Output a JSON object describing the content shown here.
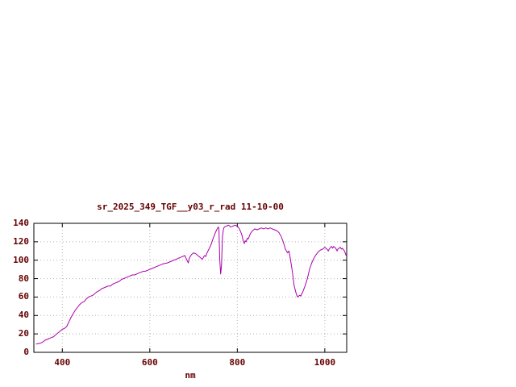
{
  "chart_data": {
    "type": "line",
    "title": "sr_2025_349_TGF__y03_r_rad 11-10-00",
    "xlabel": "nm",
    "ylabel": "",
    "xlim": [
      335,
      1050
    ],
    "ylim": [
      0,
      140
    ],
    "xticks": [
      400,
      600,
      800,
      1000
    ],
    "yticks": [
      0,
      20,
      40,
      60,
      80,
      100,
      120,
      140
    ],
    "grid": true,
    "legend_position": "none",
    "line_color": "#aa00aa",
    "text_color": "#660000",
    "border_color": "#000000",
    "grid_color": "#b4b4b4",
    "series": [
      {
        "name": "sr_2025_349_TGF__y03_r_rad",
        "points": [
          [
            340,
            9
          ],
          [
            350,
            10
          ],
          [
            355,
            11
          ],
          [
            360,
            13
          ],
          [
            365,
            14
          ],
          [
            370,
            15
          ],
          [
            375,
            16
          ],
          [
            380,
            17
          ],
          [
            385,
            19
          ],
          [
            390,
            21
          ],
          [
            395,
            23
          ],
          [
            400,
            25
          ],
          [
            405,
            26
          ],
          [
            410,
            28
          ],
          [
            415,
            33
          ],
          [
            420,
            38
          ],
          [
            425,
            42
          ],
          [
            430,
            46
          ],
          [
            435,
            49
          ],
          [
            440,
            52
          ],
          [
            445,
            54
          ],
          [
            450,
            55
          ],
          [
            455,
            58
          ],
          [
            460,
            60
          ],
          [
            465,
            61
          ],
          [
            470,
            62
          ],
          [
            475,
            64
          ],
          [
            480,
            66
          ],
          [
            485,
            67
          ],
          [
            490,
            69
          ],
          [
            495,
            70
          ],
          [
            500,
            71
          ],
          [
            505,
            72
          ],
          [
            510,
            72
          ],
          [
            515,
            74
          ],
          [
            520,
            75
          ],
          [
            525,
            76
          ],
          [
            530,
            77
          ],
          [
            535,
            79
          ],
          [
            540,
            80
          ],
          [
            545,
            81
          ],
          [
            550,
            82
          ],
          [
            555,
            83
          ],
          [
            560,
            84
          ],
          [
            565,
            84
          ],
          [
            570,
            85
          ],
          [
            575,
            86
          ],
          [
            580,
            87
          ],
          [
            585,
            88
          ],
          [
            590,
            88
          ],
          [
            595,
            89
          ],
          [
            600,
            90
          ],
          [
            610,
            92
          ],
          [
            620,
            94
          ],
          [
            630,
            96
          ],
          [
            640,
            97
          ],
          [
            650,
            99
          ],
          [
            655,
            100
          ],
          [
            660,
            101
          ],
          [
            665,
            102
          ],
          [
            670,
            103
          ],
          [
            675,
            104
          ],
          [
            680,
            105
          ],
          [
            685,
            100
          ],
          [
            688,
            97
          ],
          [
            690,
            102
          ],
          [
            695,
            106
          ],
          [
            700,
            108
          ],
          [
            705,
            107
          ],
          [
            710,
            105
          ],
          [
            715,
            103
          ],
          [
            720,
            101
          ],
          [
            725,
            105
          ],
          [
            728,
            104
          ],
          [
            730,
            107
          ],
          [
            735,
            112
          ],
          [
            740,
            117
          ],
          [
            745,
            124
          ],
          [
            750,
            130
          ],
          [
            753,
            133
          ],
          [
            756,
            136
          ],
          [
            758,
            135
          ],
          [
            760,
            100
          ],
          [
            762,
            85
          ],
          [
            764,
            95
          ],
          [
            766,
            125
          ],
          [
            768,
            133
          ],
          [
            770,
            136
          ],
          [
            775,
            137
          ],
          [
            780,
            138
          ],
          [
            785,
            136
          ],
          [
            790,
            137
          ],
          [
            795,
            138
          ],
          [
            800,
            137
          ],
          [
            805,
            134
          ],
          [
            810,
            128
          ],
          [
            813,
            122
          ],
          [
            816,
            118
          ],
          [
            818,
            121
          ],
          [
            820,
            120
          ],
          [
            823,
            124
          ],
          [
            825,
            123
          ],
          [
            830,
            129
          ],
          [
            835,
            132
          ],
          [
            840,
            134
          ],
          [
            845,
            133
          ],
          [
            850,
            134
          ],
          [
            855,
            135
          ],
          [
            860,
            134
          ],
          [
            865,
            135
          ],
          [
            870,
            134
          ],
          [
            875,
            135
          ],
          [
            880,
            134
          ],
          [
            885,
            133
          ],
          [
            890,
            132
          ],
          [
            895,
            130
          ],
          [
            900,
            126
          ],
          [
            905,
            120
          ],
          [
            910,
            112
          ],
          [
            915,
            108
          ],
          [
            918,
            110
          ],
          [
            920,
            105
          ],
          [
            925,
            90
          ],
          [
            930,
            72
          ],
          [
            935,
            63
          ],
          [
            938,
            60
          ],
          [
            940,
            61
          ],
          [
            943,
            62
          ],
          [
            945,
            61
          ],
          [
            950,
            66
          ],
          [
            955,
            72
          ],
          [
            960,
            80
          ],
          [
            965,
            90
          ],
          [
            970,
            97
          ],
          [
            975,
            102
          ],
          [
            980,
            106
          ],
          [
            985,
            109
          ],
          [
            990,
            111
          ],
          [
            995,
            112
          ],
          [
            1000,
            114
          ],
          [
            1005,
            112
          ],
          [
            1008,
            110
          ],
          [
            1010,
            112
          ],
          [
            1015,
            115
          ],
          [
            1018,
            113
          ],
          [
            1020,
            115
          ],
          [
            1025,
            113
          ],
          [
            1028,
            110
          ],
          [
            1030,
            112
          ],
          [
            1035,
            114
          ],
          [
            1038,
            112
          ],
          [
            1040,
            113
          ],
          [
            1045,
            110
          ],
          [
            1048,
            106
          ],
          [
            1050,
            104
          ]
        ]
      }
    ]
  }
}
